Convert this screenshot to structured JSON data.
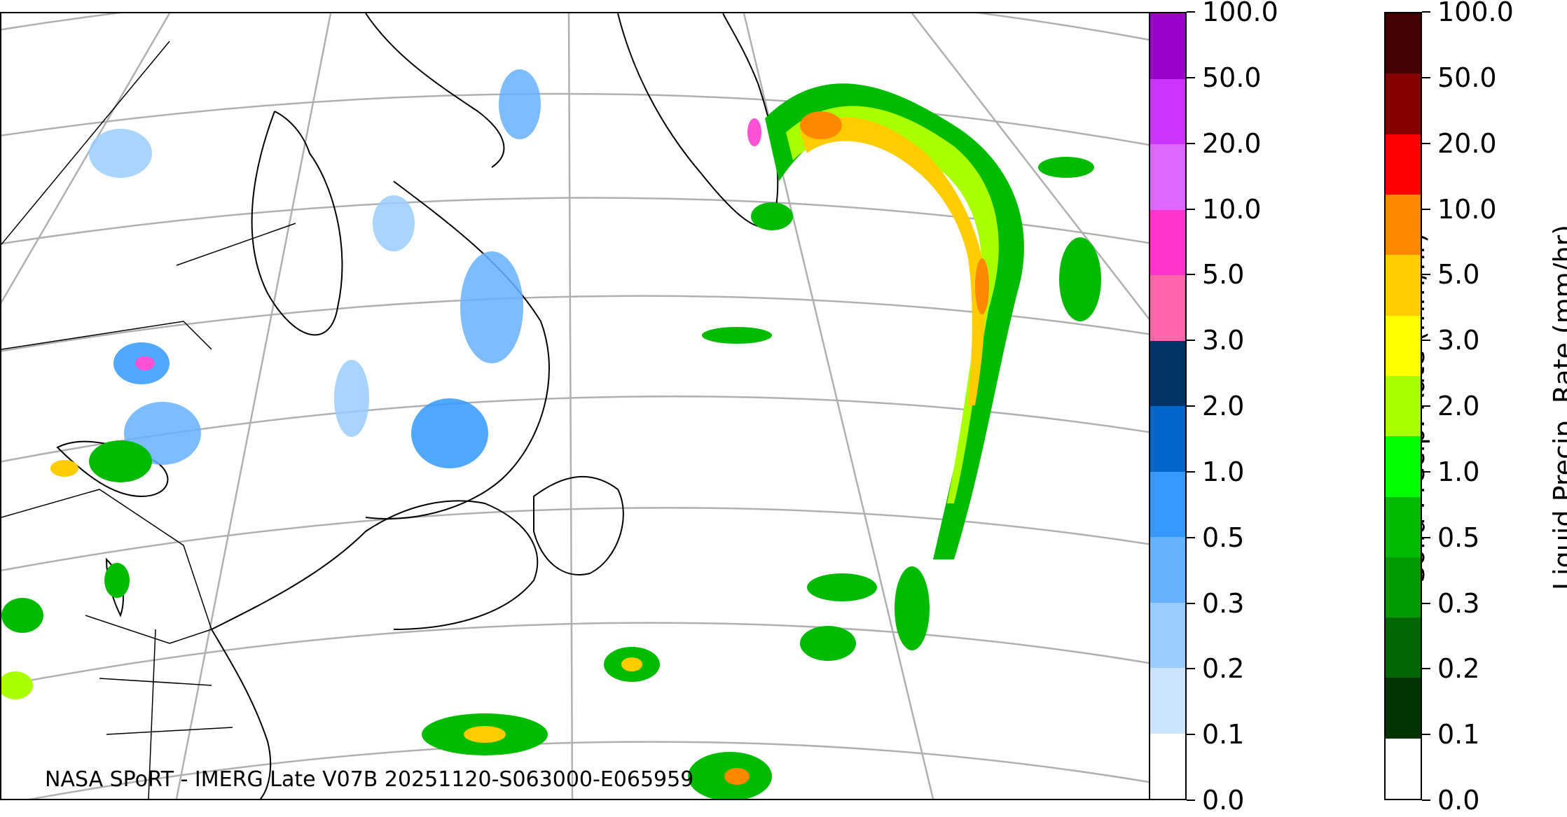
{
  "map": {
    "caption": "NASA SPoRT - IMERG Late V07B 20251120-S063000-E065959",
    "background": "#ffffff",
    "coastline_color": "#000000",
    "graticule_color": "#b0b0b0"
  },
  "solid_colorbar": {
    "label": "Solid Precip. Rate (mm/hr)",
    "ticks": [
      "0.0",
      "0.1",
      "0.2",
      "0.3",
      "0.5",
      "1.0",
      "2.0",
      "3.0",
      "5.0",
      "10.0",
      "20.0",
      "50.0",
      "100.0"
    ],
    "colors_bottom_to_top": [
      "#ffffff",
      "#cce4ff",
      "#99ccff",
      "#66b2ff",
      "#3399ff",
      "#0066cc",
      "#003366",
      "#ff66aa",
      "#ff33cc",
      "#dd66ff",
      "#cc33ff",
      "#9900cc"
    ]
  },
  "liquid_colorbar": {
    "label": "Liquid Precip. Rate (mm/hr)",
    "ticks": [
      "0.0",
      "0.1",
      "0.2",
      "0.3",
      "0.5",
      "1.0",
      "2.0",
      "3.0",
      "5.0",
      "10.0",
      "20.0",
      "50.0",
      "100.0"
    ],
    "colors_bottom_to_top": [
      "#ffffff",
      "#003300",
      "#006600",
      "#009900",
      "#00bb00",
      "#00ff00",
      "#aaff00",
      "#ffff00",
      "#ffcc00",
      "#ff8800",
      "#ff0000",
      "#880000",
      "#440000"
    ]
  }
}
